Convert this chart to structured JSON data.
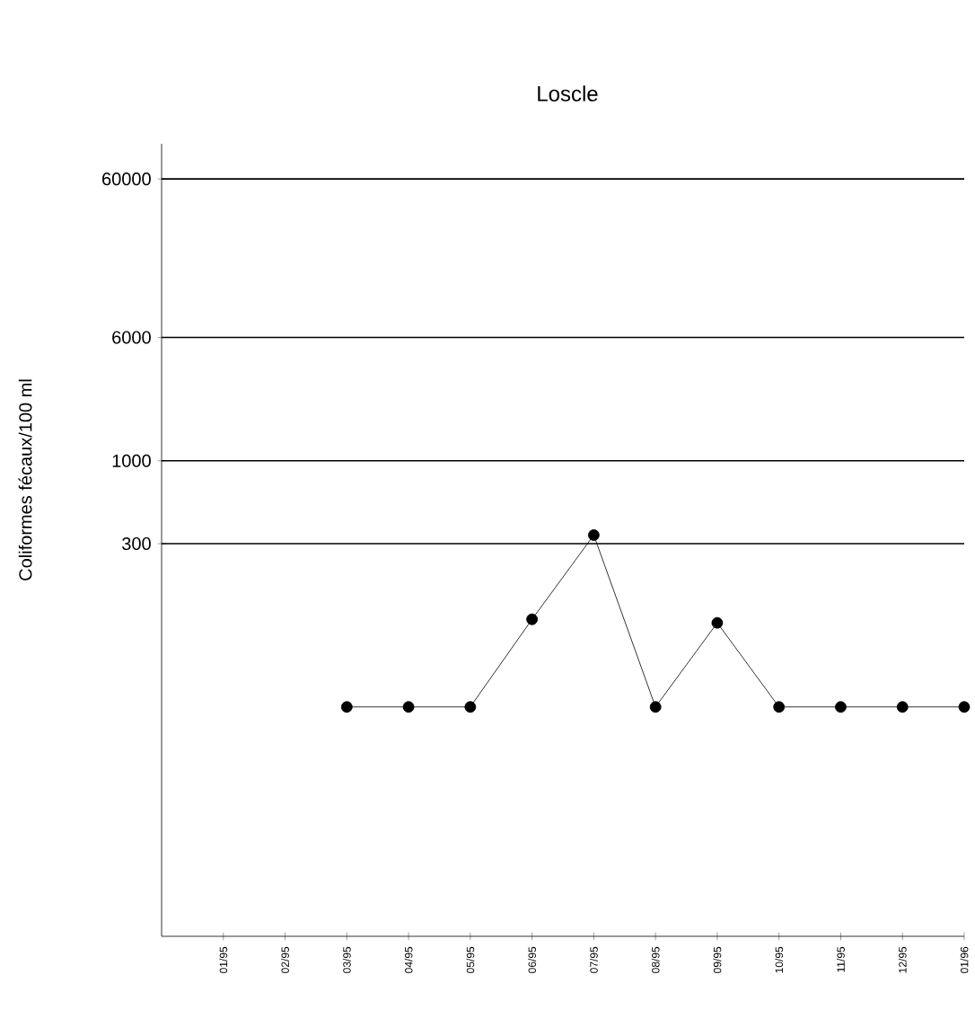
{
  "chart_data": {
    "type": "line",
    "title": "Loscle",
    "ylabel": "Coliformes fécaux/100 ml",
    "categories": [
      "01/95",
      "02/95",
      "03/95",
      "04/95",
      "05/95",
      "06/95",
      "07/95",
      "08/95",
      "09/95",
      "10/95",
      "11/95",
      "12/95",
      "01/96"
    ],
    "values": [
      null,
      null,
      28,
      28,
      28,
      100,
      340,
      28,
      95,
      28,
      28,
      28,
      28
    ],
    "color": "#000000",
    "marker": "circle",
    "line_style": "solid",
    "log": "y",
    "grid": "y",
    "ylim": [
      1,
      100000
    ],
    "yticks": [
      300,
      1000,
      6000,
      60000
    ]
  }
}
